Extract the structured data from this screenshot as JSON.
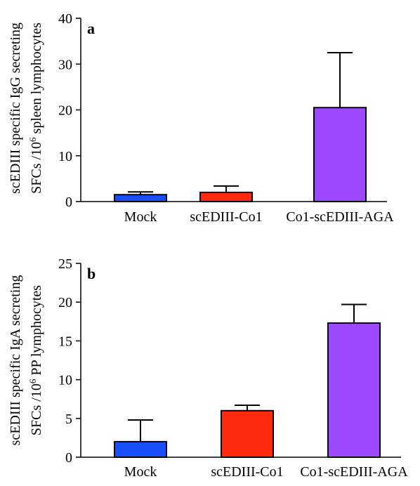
{
  "chart_data": [
    {
      "type": "bar",
      "panel_label": "a",
      "ylabel_line1": "scEDIII specific IgG secreting",
      "ylabel_line2_pre": "SFCs /10",
      "ylabel_line2_sup": "6",
      "ylabel_line2_post": " spleen lymphocytes",
      "categories": [
        "Mock",
        "scEDIII-Co1",
        "Co1-scEDIII-AGA"
      ],
      "values": [
        1.5,
        2.0,
        20.5
      ],
      "errors": [
        0.6,
        1.4,
        12.0
      ],
      "colors": [
        "#1a4fff",
        "#ff2a0f",
        "#9e48ff"
      ],
      "ylim": [
        0,
        40
      ],
      "yticks": [
        "0",
        "10",
        "20",
        "30",
        "40"
      ],
      "error_bars": "upper",
      "grid": false
    },
    {
      "type": "bar",
      "panel_label": "b",
      "ylabel_line1": "scEDIII specific IgA secreting",
      "ylabel_line2_pre": "SFCs /10",
      "ylabel_line2_sup": "6",
      "ylabel_line2_post": " PP lymphocytes",
      "categories": [
        "Mock",
        "scEDIII-Co1",
        "Co1-scEDIII-AGA"
      ],
      "values": [
        2.0,
        6.0,
        17.3
      ],
      "errors": [
        2.8,
        0.7,
        2.4
      ],
      "colors": [
        "#1a4fff",
        "#ff2a0f",
        "#9e48ff"
      ],
      "ylim": [
        0,
        25
      ],
      "yticks": [
        "0",
        "5",
        "10",
        "15",
        "20",
        "25"
      ],
      "error_bars": "upper",
      "grid": false
    }
  ]
}
